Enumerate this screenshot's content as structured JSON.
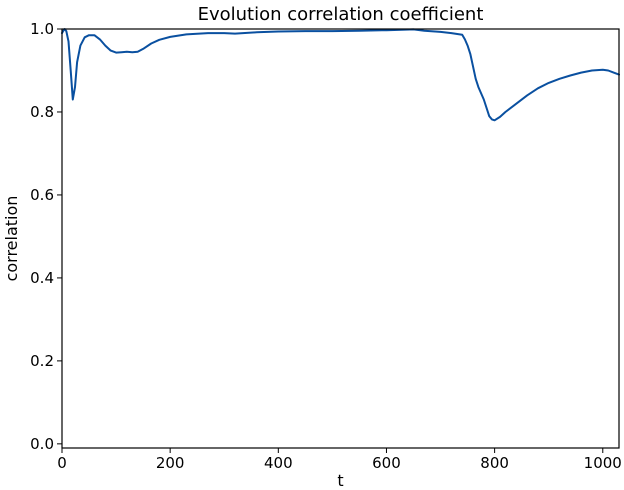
{
  "chart_data": {
    "type": "line",
    "title": "Evolution correlation coefficient",
    "xlabel": "t",
    "ylabel": "correlation",
    "xlim": [
      0,
      1030
    ],
    "ylim": [
      -0.01,
      1.0
    ],
    "grid": false,
    "legend": "none",
    "x_ticks": [
      0,
      200,
      400,
      600,
      800,
      1000
    ],
    "y_ticks": [
      0.0,
      0.2,
      0.4,
      0.6,
      0.8,
      1.0
    ],
    "x_tick_labels": [
      "0",
      "200",
      "400",
      "600",
      "800",
      "1000"
    ],
    "y_tick_labels": [
      "0.0",
      "0.2",
      "0.4",
      "0.6",
      "0.8",
      "1.0"
    ],
    "series": [
      {
        "color": "#0a50a0",
        "x": [
          0,
          2,
          5,
          8,
          12,
          16,
          20,
          24,
          28,
          34,
          42,
          50,
          60,
          70,
          80,
          90,
          100,
          110,
          120,
          130,
          140,
          150,
          165,
          180,
          200,
          230,
          270,
          300,
          320,
          360,
          400,
          450,
          500,
          550,
          600,
          650,
          670,
          700,
          720,
          740,
          745,
          750,
          755,
          760,
          765,
          770,
          780,
          790,
          795,
          800,
          810,
          820,
          840,
          860,
          880,
          900,
          920,
          940,
          960,
          980,
          1000,
          1010,
          1020,
          1030
        ],
        "y": [
          0.99,
          0.995,
          1.0,
          0.995,
          0.97,
          0.9,
          0.83,
          0.86,
          0.92,
          0.96,
          0.98,
          0.985,
          0.985,
          0.975,
          0.96,
          0.948,
          0.943,
          0.944,
          0.945,
          0.944,
          0.945,
          0.952,
          0.965,
          0.974,
          0.981,
          0.987,
          0.99,
          0.99,
          0.989,
          0.992,
          0.994,
          0.995,
          0.995,
          0.996,
          0.997,
          0.999,
          0.996,
          0.993,
          0.99,
          0.986,
          0.975,
          0.96,
          0.94,
          0.91,
          0.88,
          0.86,
          0.83,
          0.79,
          0.782,
          0.78,
          0.788,
          0.8,
          0.82,
          0.84,
          0.857,
          0.87,
          0.88,
          0.888,
          0.895,
          0.9,
          0.902,
          0.9,
          0.895,
          0.89
        ]
      }
    ]
  }
}
